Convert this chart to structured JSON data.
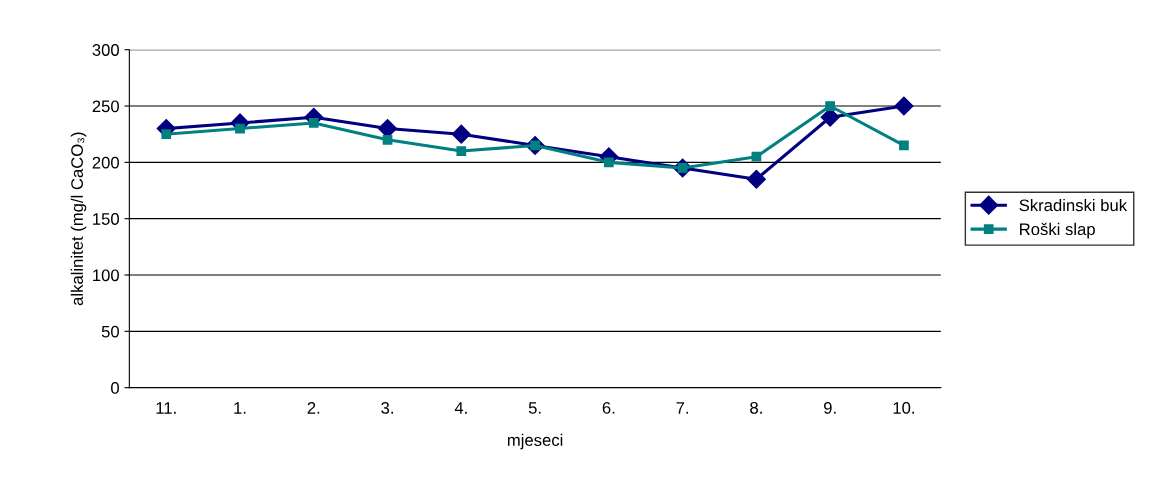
{
  "chart_data": {
    "type": "line",
    "xlabel": "mjeseci",
    "ylabel": "alkalinitet (mg/l CaCO₃)",
    "categories": [
      "11.",
      "1.",
      "2.",
      "3.",
      "4.",
      "5.",
      "6.",
      "7.",
      "8.",
      "9.",
      "10."
    ],
    "series": [
      {
        "name": "Skradinski buk",
        "color": "#000080",
        "marker": "diamond",
        "values": [
          230,
          235,
          240,
          230,
          225,
          215,
          205,
          195,
          185,
          240,
          250
        ]
      },
      {
        "name": "Roški slap",
        "color": "#008080",
        "marker": "square",
        "values": [
          225,
          230,
          235,
          220,
          210,
          215,
          200,
          195,
          205,
          250,
          215
        ]
      }
    ],
    "ylim": [
      0,
      300
    ],
    "yticks": [
      0,
      50,
      100,
      150,
      200,
      250,
      300
    ],
    "grid": "y",
    "legend": "right",
    "line_style": "solid"
  }
}
